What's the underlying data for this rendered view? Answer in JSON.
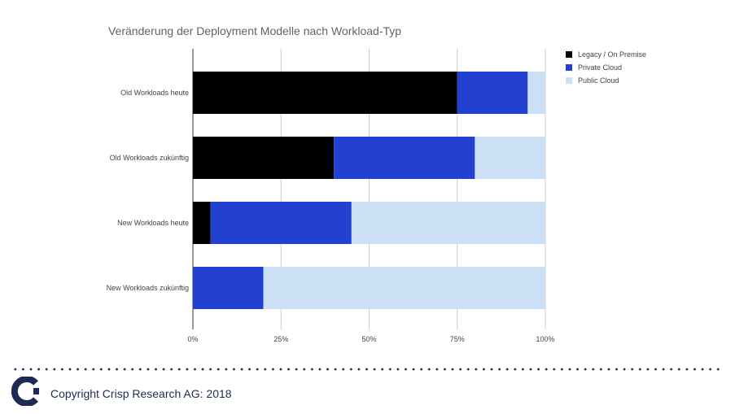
{
  "chart_data": {
    "type": "bar",
    "orientation": "horizontal",
    "stacked": true,
    "title": "Veränderung der Deployment Modelle nach Workload-Typ",
    "categories": [
      "Old Workloads heute",
      "Old Workloads zukünftig",
      "New Workloads heute",
      "New Workloads zukünftig"
    ],
    "series": [
      {
        "name": "Legacy / On Premise",
        "color": "#000000",
        "values": [
          75,
          40,
          5,
          0
        ]
      },
      {
        "name": "Private Cloud",
        "color": "#2341d1",
        "values": [
          20,
          40,
          40,
          20
        ]
      },
      {
        "name": "Public Cloud",
        "color": "#cce0f5",
        "values": [
          5,
          20,
          55,
          80
        ]
      }
    ],
    "xlim": [
      0,
      100
    ],
    "xticks": [
      "0%",
      "25%",
      "50%",
      "75%",
      "100%"
    ],
    "grid": true,
    "legend_position": "right"
  },
  "footer": {
    "copyright": "Copyright Crisp Research AG: 2018",
    "logo_icon": "crisp-research-logo-icon"
  }
}
